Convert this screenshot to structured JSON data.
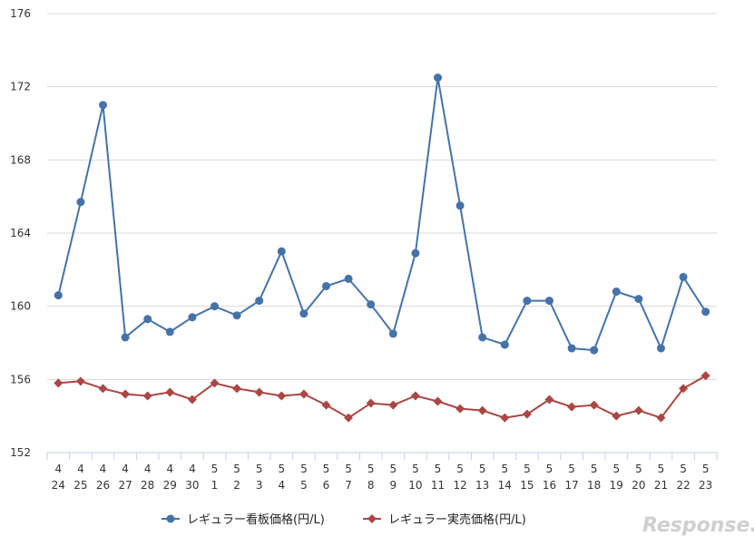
{
  "chart_data": {
    "type": "line",
    "categories": [
      [
        "4",
        "24"
      ],
      [
        "4",
        "25"
      ],
      [
        "4",
        "26"
      ],
      [
        "4",
        "27"
      ],
      [
        "4",
        "28"
      ],
      [
        "4",
        "29"
      ],
      [
        "4",
        "30"
      ],
      [
        "5",
        "1"
      ],
      [
        "5",
        "2"
      ],
      [
        "5",
        "3"
      ],
      [
        "5",
        "4"
      ],
      [
        "5",
        "5"
      ],
      [
        "5",
        "6"
      ],
      [
        "5",
        "7"
      ],
      [
        "5",
        "8"
      ],
      [
        "5",
        "9"
      ],
      [
        "5",
        "10"
      ],
      [
        "5",
        "11"
      ],
      [
        "5",
        "12"
      ],
      [
        "5",
        "13"
      ],
      [
        "5",
        "14"
      ],
      [
        "5",
        "15"
      ],
      [
        "5",
        "16"
      ],
      [
        "5",
        "17"
      ],
      [
        "5",
        "18"
      ],
      [
        "5",
        "19"
      ],
      [
        "5",
        "20"
      ],
      [
        "5",
        "21"
      ],
      [
        "5",
        "22"
      ],
      [
        "5",
        "23"
      ]
    ],
    "series": [
      {
        "name": "レギュラー看板価格(円/L)",
        "color": "#4572a7",
        "marker": "circle",
        "values": [
          160.6,
          165.7,
          171.0,
          158.3,
          159.3,
          158.6,
          159.4,
          160.0,
          159.5,
          160.3,
          163.0,
          159.6,
          161.1,
          161.5,
          160.1,
          158.5,
          162.9,
          172.5,
          165.5,
          158.3,
          157.9,
          160.3,
          160.3,
          157.7,
          157.6,
          160.8,
          160.4,
          157.7,
          161.6,
          159.7
        ]
      },
      {
        "name": "レギュラー実売価格(円/L)",
        "color": "#aa4643",
        "marker": "diamond",
        "values": [
          155.8,
          155.9,
          155.5,
          155.2,
          155.1,
          155.3,
          154.9,
          155.8,
          155.5,
          155.3,
          155.1,
          155.2,
          154.6,
          153.9,
          154.7,
          154.6,
          155.1,
          154.8,
          154.4,
          154.3,
          153.9,
          154.1,
          154.9,
          154.5,
          154.6,
          154.0,
          154.3,
          153.9,
          155.5,
          156.2
        ]
      }
    ],
    "title": "",
    "xlabel": "",
    "ylabel": "",
    "ylim": [
      152,
      176
    ],
    "yticks": [
      "152",
      "156",
      "160",
      "164",
      "168",
      "172",
      "176"
    ],
    "grid": true,
    "legend": "bottom-center"
  },
  "watermark": "Response."
}
